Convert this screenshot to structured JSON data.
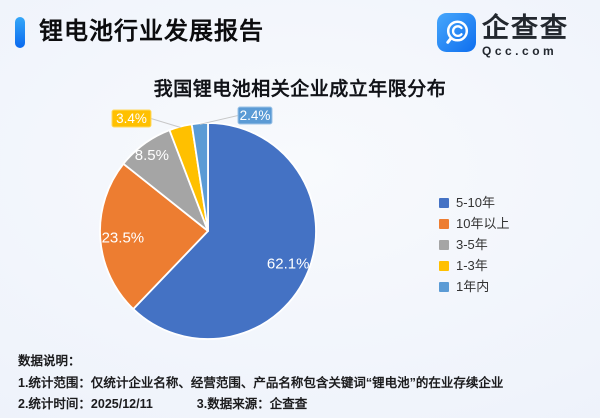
{
  "header": {
    "title": "锂电池行业发展报告",
    "logo": {
      "name": "企查查",
      "domain": "Qcc.com"
    }
  },
  "colors": {
    "accent_blue": "#0a69ef",
    "accent_blue_light": "#35a7f8",
    "logo_blue": "#1677f0",
    "callout_line": "#c8c8c8",
    "background": "#eff3fb"
  },
  "chart_data": {
    "type": "pie",
    "title": "我国锂电池相关企业成立年限分布",
    "legend_position": "right",
    "label_unit": "%",
    "series": [
      {
        "label": "5-10年",
        "value": 62.1,
        "display": "62.1%",
        "color": "#4472C4",
        "label_style": "inside"
      },
      {
        "label": "10年以上",
        "value": 23.5,
        "display": "23.5%",
        "color": "#ED7D31",
        "label_style": "inside"
      },
      {
        "label": "3-5年",
        "value": 8.5,
        "display": "8.5%",
        "color": "#A5A5A5",
        "label_style": "inside"
      },
      {
        "label": "1-3年",
        "value": 3.4,
        "display": "3.4%",
        "color": "#FFC000",
        "label_style": "callout"
      },
      {
        "label": "1年内",
        "value": 2.4,
        "display": "2.4%",
        "color": "#5B9BD5",
        "label_style": "callout"
      }
    ]
  },
  "footnotes": {
    "heading": "数据说明：",
    "scope": "1.统计范围：仅统计企业名称、经营范围、产品名称包含关键词“锂电池”的在业存续企业",
    "time": "2.统计时间：2025/12/11",
    "source": "3.数据来源：企查查"
  }
}
